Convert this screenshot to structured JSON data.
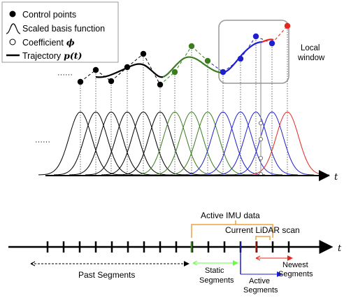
{
  "legend": {
    "control_points": "Control points",
    "basis_function": "Scaled basis function",
    "coefficient": "Coefficient",
    "coefficient_symbol": "ϕ",
    "trajectory": "Trajectory",
    "trajectory_symbol": "p(t)"
  },
  "local_window": {
    "line1": "Local",
    "line2": "window"
  },
  "ellipsis": "······",
  "axis_label": "t",
  "timeline": {
    "active_imu": "Active IMU data",
    "current_lidar": "Current LiDAR scan",
    "newest_1": "Newest",
    "newest_2": "Segments",
    "past_segments": "Past Segments",
    "static_1": "Static",
    "static_2": "Segments",
    "active_1": "Active",
    "active_2": "Segments"
  },
  "colors": {
    "black": "#000000",
    "green": "#3a7d1e",
    "blue": "#1f1fd0",
    "red": "#e8251c",
    "static_arrow": "#66ff44",
    "bracket": "#f0a040"
  }
}
